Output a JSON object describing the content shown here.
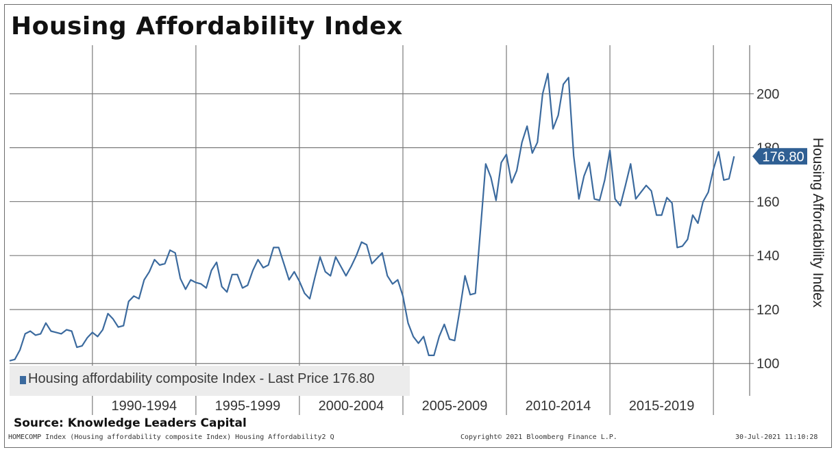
{
  "chart_data": {
    "type": "line",
    "title": "Housing Affordability Index",
    "ylabel": "Housing Affordability Index",
    "xlabel": "",
    "x_range": [
      1986,
      2021.75
    ],
    "ylim": [
      88,
      218
    ],
    "y_ticks": [
      100,
      120,
      140,
      160,
      180,
      200
    ],
    "x_tick_labels": [
      {
        "label": "1990-1994",
        "x": 1992.5
      },
      {
        "label": "1995-1999",
        "x": 1997.5
      },
      {
        "label": "2000-2004",
        "x": 2002.5
      },
      {
        "label": "2005-2009",
        "x": 2007.5
      },
      {
        "label": "2010-2014",
        "x": 2012.5
      },
      {
        "label": "2015-2019",
        "x": 2017.5
      }
    ],
    "x_gridlines": [
      1990,
      1995,
      2000,
      2005,
      2010,
      2015,
      2020
    ],
    "grid": true,
    "legend_position": "bottom-left",
    "last_price_label": "176.80",
    "series": [
      {
        "name": "Housing affordability composite Index",
        "color": "#3b6a9e",
        "points": [
          [
            1986.0,
            101.0
          ],
          [
            1986.25,
            101.5
          ],
          [
            1986.5,
            105.0
          ],
          [
            1986.75,
            111.0
          ],
          [
            1987.0,
            112.0
          ],
          [
            1987.25,
            110.5
          ],
          [
            1987.5,
            111.0
          ],
          [
            1987.75,
            115.0
          ],
          [
            1988.0,
            112.0
          ],
          [
            1988.25,
            111.5
          ],
          [
            1988.5,
            111.0
          ],
          [
            1988.75,
            112.5
          ],
          [
            1989.0,
            112.0
          ],
          [
            1989.25,
            106.0
          ],
          [
            1989.5,
            106.5
          ],
          [
            1989.75,
            109.5
          ],
          [
            1990.0,
            111.5
          ],
          [
            1990.25,
            110.0
          ],
          [
            1990.5,
            112.5
          ],
          [
            1990.75,
            118.5
          ],
          [
            1991.0,
            116.5
          ],
          [
            1991.25,
            113.5
          ],
          [
            1991.5,
            114.0
          ],
          [
            1991.75,
            123.0
          ],
          [
            1992.0,
            125.0
          ],
          [
            1992.25,
            124.0
          ],
          [
            1992.5,
            131.0
          ],
          [
            1992.75,
            134.0
          ],
          [
            1993.0,
            138.5
          ],
          [
            1993.25,
            136.5
          ],
          [
            1993.5,
            137.0
          ],
          [
            1993.75,
            142.0
          ],
          [
            1994.0,
            141.0
          ],
          [
            1994.25,
            131.5
          ],
          [
            1994.5,
            127.5
          ],
          [
            1994.75,
            131.0
          ],
          [
            1995.0,
            130.0
          ],
          [
            1995.25,
            129.5
          ],
          [
            1995.5,
            128.0
          ],
          [
            1995.75,
            134.5
          ],
          [
            1996.0,
            137.5
          ],
          [
            1996.25,
            128.5
          ],
          [
            1996.5,
            126.5
          ],
          [
            1996.75,
            133.0
          ],
          [
            1997.0,
            133.0
          ],
          [
            1997.25,
            128.0
          ],
          [
            1997.5,
            129.0
          ],
          [
            1997.75,
            134.5
          ],
          [
            1998.0,
            138.5
          ],
          [
            1998.25,
            135.5
          ],
          [
            1998.5,
            136.5
          ],
          [
            1998.75,
            143.0
          ],
          [
            1999.0,
            143.0
          ],
          [
            1999.25,
            137.0
          ],
          [
            1999.5,
            131.0
          ],
          [
            1999.75,
            134.0
          ],
          [
            2000.0,
            130.5
          ],
          [
            2000.25,
            126.0
          ],
          [
            2000.5,
            124.0
          ],
          [
            2000.75,
            132.0
          ],
          [
            2001.0,
            139.5
          ],
          [
            2001.25,
            134.0
          ],
          [
            2001.5,
            132.5
          ],
          [
            2001.75,
            139.5
          ],
          [
            2002.0,
            136.0
          ],
          [
            2002.25,
            132.5
          ],
          [
            2002.5,
            136.0
          ],
          [
            2002.75,
            140.0
          ],
          [
            2003.0,
            145.0
          ],
          [
            2003.25,
            144.0
          ],
          [
            2003.5,
            137.0
          ],
          [
            2003.75,
            139.0
          ],
          [
            2004.0,
            141.0
          ],
          [
            2004.25,
            132.5
          ],
          [
            2004.5,
            129.5
          ],
          [
            2004.75,
            131.0
          ],
          [
            2005.0,
            125.0
          ],
          [
            2005.25,
            115.0
          ],
          [
            2005.5,
            110.0
          ],
          [
            2005.75,
            107.5
          ],
          [
            2006.0,
            110.0
          ],
          [
            2006.25,
            103.0
          ],
          [
            2006.5,
            103.0
          ],
          [
            2006.75,
            110.0
          ],
          [
            2007.0,
            114.5
          ],
          [
            2007.25,
            109.0
          ],
          [
            2007.5,
            108.5
          ],
          [
            2007.75,
            120.0
          ],
          [
            2008.0,
            132.5
          ],
          [
            2008.25,
            125.5
          ],
          [
            2008.5,
            126.0
          ],
          [
            2008.75,
            150.0
          ],
          [
            2009.0,
            174.0
          ],
          [
            2009.25,
            169.0
          ],
          [
            2009.5,
            160.5
          ],
          [
            2009.75,
            174.5
          ],
          [
            2010.0,
            177.5
          ],
          [
            2010.25,
            167.0
          ],
          [
            2010.5,
            171.5
          ],
          [
            2010.75,
            182.0
          ],
          [
            2011.0,
            188.0
          ],
          [
            2011.25,
            178.0
          ],
          [
            2011.5,
            182.0
          ],
          [
            2011.75,
            200.0
          ],
          [
            2012.0,
            207.5
          ],
          [
            2012.25,
            187.0
          ],
          [
            2012.5,
            192.0
          ],
          [
            2012.75,
            203.5
          ],
          [
            2013.0,
            206.0
          ],
          [
            2013.25,
            177.0
          ],
          [
            2013.5,
            161.0
          ],
          [
            2013.75,
            169.5
          ],
          [
            2014.0,
            174.5
          ],
          [
            2014.25,
            161.0
          ],
          [
            2014.5,
            160.5
          ],
          [
            2014.75,
            168.0
          ],
          [
            2015.0,
            179.0
          ],
          [
            2015.25,
            161.0
          ],
          [
            2015.5,
            158.5
          ],
          [
            2015.75,
            166.0
          ],
          [
            2016.0,
            174.0
          ],
          [
            2016.25,
            161.0
          ],
          [
            2016.5,
            163.5
          ],
          [
            2016.75,
            166.0
          ],
          [
            2017.0,
            164.0
          ],
          [
            2017.25,
            155.0
          ],
          [
            2017.5,
            155.0
          ],
          [
            2017.75,
            161.5
          ],
          [
            2018.0,
            159.5
          ],
          [
            2018.25,
            143.0
          ],
          [
            2018.5,
            143.5
          ],
          [
            2018.75,
            146.0
          ],
          [
            2019.0,
            155.0
          ],
          [
            2019.25,
            152.0
          ],
          [
            2019.5,
            160.0
          ],
          [
            2019.75,
            163.5
          ],
          [
            2020.0,
            172.0
          ],
          [
            2020.25,
            178.5
          ],
          [
            2020.5,
            168.0
          ],
          [
            2020.75,
            168.5
          ],
          [
            2021.0,
            176.8
          ]
        ]
      }
    ]
  },
  "legend": {
    "label": "Housing affordability composite Index - Last Price 176.80"
  },
  "footer": {
    "source": "Source: Knowledge Leaders Capital",
    "ticker": "HOMECOMP Index (Housing affordability composite Index) Housing Affordability2 Q",
    "copyright": "Copyright© 2021 Bloomberg Finance L.P.",
    "timestamp": "30-Jul-2021 11:10:28"
  }
}
